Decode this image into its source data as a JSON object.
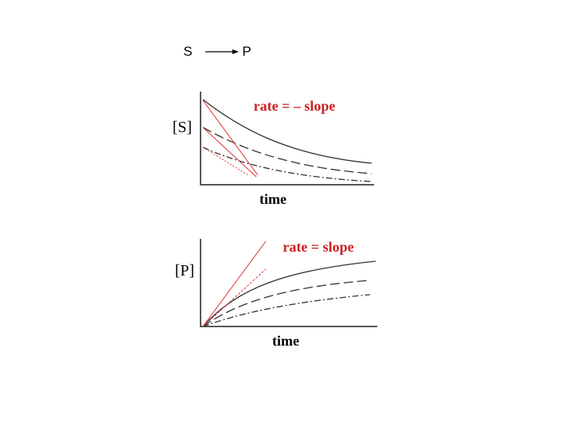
{
  "reaction": {
    "reactant": "S",
    "product": "P"
  },
  "top_plot": {
    "annotation": "rate = – slope",
    "y_label": "[S]",
    "x_label": "time"
  },
  "bottom_plot": {
    "annotation": "rate = slope",
    "y_label": "[P]",
    "x_label": "time"
  }
}
